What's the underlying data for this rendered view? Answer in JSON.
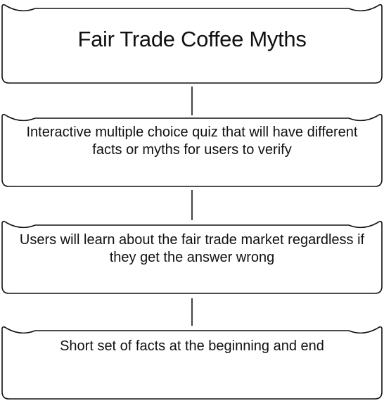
{
  "diagram": {
    "type": "flowchart",
    "nodes": [
      {
        "id": "title",
        "text": "Fair Trade Coffee Myths"
      },
      {
        "id": "step-1",
        "text": "Interactive multiple choice quiz that will have different facts or myths for users to verify"
      },
      {
        "id": "step-2",
        "text": "Users will learn about the fair trade market regardless if they get the answer wrong"
      },
      {
        "id": "step-3",
        "text": "Short set of facts at the beginning and end"
      }
    ],
    "edges": [
      {
        "from": "title",
        "to": "step-1"
      },
      {
        "from": "step-1",
        "to": "step-2"
      },
      {
        "from": "step-2",
        "to": "step-3"
      }
    ]
  }
}
